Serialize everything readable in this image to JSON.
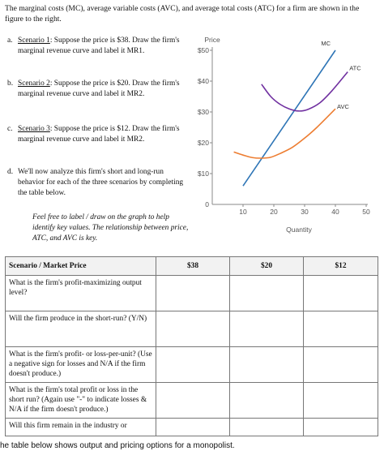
{
  "intro": "The marginal costs (MC), average variable costs (AVC), and average total costs (ATC) for a firm are shown in the figure to the right.",
  "scenarios": [
    {
      "label": "a.",
      "title": "Scenario 1",
      "text": ": Suppose the price is $38. Draw the firm's marginal revenue curve and label it MR1."
    },
    {
      "label": "b.",
      "title": "Scenario 2",
      "text": ": Suppose the price is $20. Draw the firm's marginal revenue curve and label it MR2."
    },
    {
      "label": "c.",
      "title": "Scenario 3",
      "text": ": Suppose the price is $12. Draw the firm's marginal revenue curve and label it MR2."
    },
    {
      "label": "d.",
      "title": "",
      "text": "We'll now analyze this firm's short and long-run behavior for each of the three scenarios by completing the table below."
    }
  ],
  "note": "Feel free to label / draw on the graph to help identify key values. The relationship between price, ATC, and AVC is key.",
  "chart_data": {
    "type": "line",
    "ylabel": "Price",
    "xlabel": "Quantity",
    "xlim": [
      0,
      50
    ],
    "ylim": [
      0,
      50
    ],
    "x_ticks": [
      "10",
      "20",
      "30",
      "40",
      "50"
    ],
    "y_ticks": [
      "$50",
      "$40",
      "$30",
      "$20",
      "$10",
      "0"
    ],
    "grid": false,
    "series": [
      {
        "name": "MC",
        "color": "#2e75b6",
        "x": [
          10,
          40
        ],
        "y": [
          6,
          50
        ]
      },
      {
        "name": "ATC",
        "color": "#7030a0",
        "x": [
          16,
          19,
          22,
          25,
          28,
          31,
          35,
          39,
          44
        ],
        "y": [
          39,
          35,
          32.5,
          31,
          30.3,
          30.8,
          33,
          37,
          43
        ]
      },
      {
        "name": "AVC",
        "color": "#ed7d31",
        "x": [
          7,
          10,
          13,
          16,
          19,
          22,
          26,
          30,
          34,
          40
        ],
        "y": [
          17,
          16,
          15.2,
          15,
          15.3,
          16.5,
          18.5,
          21.5,
          25,
          31
        ]
      }
    ]
  },
  "table": {
    "headers": [
      "Scenario / Market Price",
      "$38",
      "$20",
      "$12"
    ],
    "rows": [
      "What is the firm's profit-maximizing output level?",
      "Will the firm produce in the short-run? (Y/N)",
      "What is the firm's profit- or loss-per-unit? (Use a negative sign for losses and N/A if the firm doesn't produce.)",
      "What is the firm's total profit or loss in the short run? (Again use \"-\" to indicate losses & N/A if the firm doesn't produce.)",
      "Will this firm remain in the industry or"
    ]
  },
  "footer": "he table below shows output and pricing options for a monopolist."
}
